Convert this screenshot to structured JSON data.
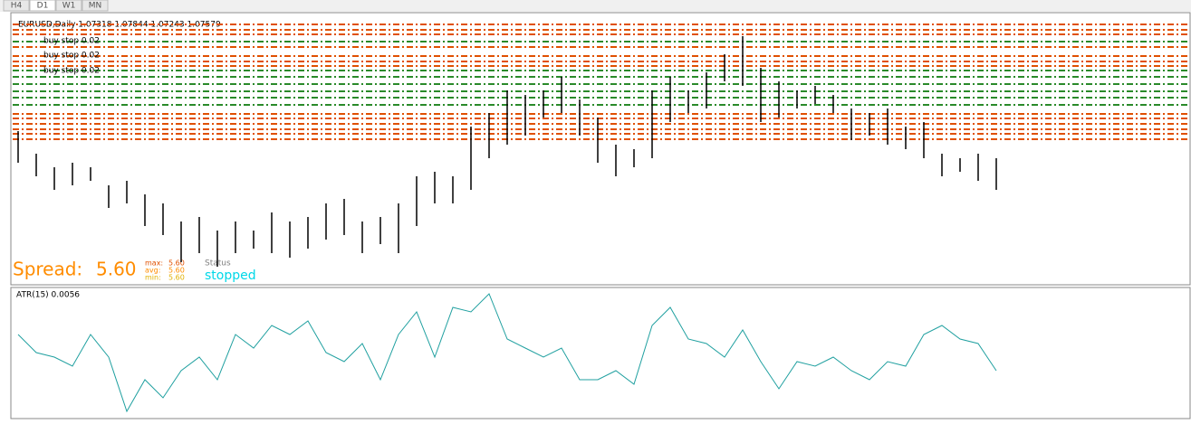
{
  "tabs": [
    "H4",
    "D1",
    "W1",
    "MN"
  ],
  "header": "EURUSD,Daily  1.07318 1.07844 1.07243 1.07579",
  "order_labels": [
    "buy stop 0.02",
    "buy stop 0.02",
    "buy stop 0.02"
  ],
  "spread": {
    "label": "Spread:",
    "value": "5.60"
  },
  "stats": [
    {
      "label": "max:",
      "value": "5.60"
    },
    {
      "label": "avg:",
      "value": "5.60"
    },
    {
      "label": "min:",
      "value": "5.60"
    }
  ],
  "status": {
    "label": "Status",
    "value": "stopped"
  },
  "chart_data": [
    {
      "type": "hilo",
      "color": "#000000",
      "ylim": [
        1.04,
        1.1
      ],
      "highs": [
        1.074,
        1.069,
        1.066,
        1.067,
        1.066,
        1.062,
        1.063,
        1.06,
        1.058,
        1.054,
        1.055,
        1.052,
        1.054,
        1.052,
        1.056,
        1.054,
        1.055,
        1.058,
        1.059,
        1.054,
        1.055,
        1.058,
        1.064,
        1.065,
        1.064,
        1.075,
        1.078,
        1.083,
        1.082,
        1.083,
        1.086,
        1.081,
        1.077,
        1.071,
        1.07,
        1.083,
        1.086,
        1.083,
        1.087,
        1.091,
        1.095,
        1.088,
        1.085,
        1.083,
        1.084,
        1.082,
        1.079,
        1.078,
        1.079,
        1.075,
        1.076,
        1.069,
        1.068,
        1.069,
        1.068
      ],
      "lows": [
        1.067,
        1.064,
        1.061,
        1.062,
        1.063,
        1.057,
        1.058,
        1.053,
        1.051,
        1.045,
        1.047,
        1.044,
        1.047,
        1.048,
        1.047,
        1.046,
        1.048,
        1.05,
        1.051,
        1.047,
        1.049,
        1.047,
        1.053,
        1.058,
        1.058,
        1.061,
        1.068,
        1.071,
        1.073,
        1.077,
        1.078,
        1.073,
        1.067,
        1.064,
        1.066,
        1.068,
        1.076,
        1.078,
        1.079,
        1.085,
        1.084,
        1.076,
        1.077,
        1.079,
        1.08,
        1.078,
        1.072,
        1.073,
        1.071,
        1.07,
        1.068,
        1.064,
        1.065,
        1.063,
        1.061
      ]
    },
    {
      "type": "line",
      "title": "ATR(15) 0.0056",
      "color": "#20a0a0",
      "ylim": [
        0.003,
        0.0102
      ],
      "values": [
        0.0076,
        0.0066,
        0.00635,
        0.00585,
        0.0076,
        0.00635,
        0.00335,
        0.0051,
        0.0041,
        0.0056,
        0.00635,
        0.0051,
        0.0076,
        0.00685,
        0.0081,
        0.0076,
        0.00835,
        0.0066,
        0.0061,
        0.0071,
        0.0051,
        0.0076,
        0.00885,
        0.00635,
        0.0091,
        0.00885,
        0.00985,
        0.00735,
        0.00685,
        0.00635,
        0.00685,
        0.0051,
        0.0051,
        0.0056,
        0.00485,
        0.0081,
        0.0091,
        0.00735,
        0.0071,
        0.00635,
        0.00785,
        0.0061,
        0.0046,
        0.0061,
        0.00585,
        0.00635,
        0.0056,
        0.0051,
        0.0061,
        0.00585,
        0.0076,
        0.0081,
        0.00735,
        0.0071,
        0.0056
      ]
    }
  ]
}
